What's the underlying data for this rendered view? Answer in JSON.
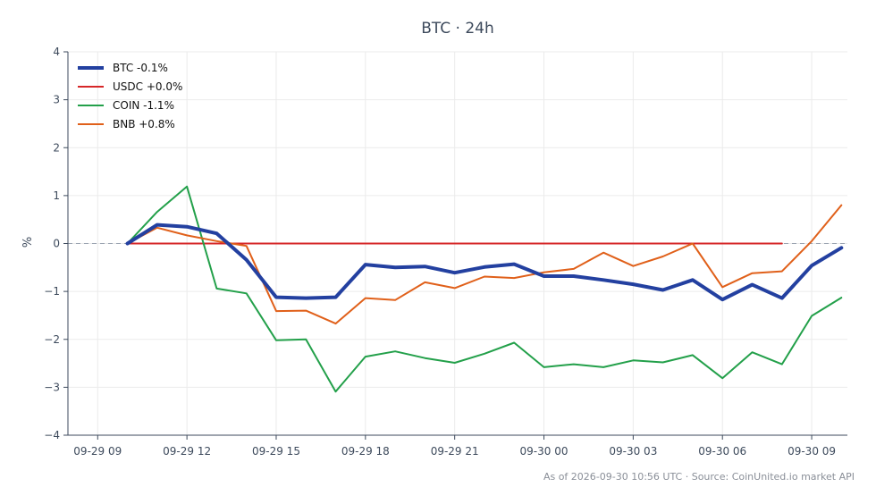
{
  "chart_data": {
    "type": "line",
    "title": "BTC · 24h",
    "xlabel": "",
    "ylabel": "%",
    "xlim": [
      -1,
      25.2
    ],
    "ylim": [
      -4,
      4
    ],
    "yticks": [
      4,
      3,
      2,
      1,
      0,
      -1,
      -2,
      -3,
      -4
    ],
    "ytick_labels": [
      "4",
      "3",
      "2",
      "1",
      "0",
      "−1",
      "−2",
      "−3",
      "−4"
    ],
    "xticks": [
      {
        "x": 0,
        "label": "09-29 09"
      },
      {
        "x": 3,
        "label": "09-29 12"
      },
      {
        "x": 6,
        "label": "09-29 15"
      },
      {
        "x": 9,
        "label": "09-29 18"
      },
      {
        "x": 12,
        "label": "09-29 21"
      },
      {
        "x": 15,
        "label": "09-30 00"
      },
      {
        "x": 18,
        "label": "09-30 03"
      },
      {
        "x": 21,
        "label": "09-30 06"
      },
      {
        "x": 24,
        "label": "09-30 09"
      }
    ],
    "grid": true,
    "zero_line": true,
    "legend_position": "top-left",
    "series": [
      {
        "name": "BTC -0.1%",
        "color": "#2340a0",
        "width": 4,
        "x": [
          1,
          2,
          3,
          4,
          5,
          6,
          7,
          8,
          9,
          10,
          11,
          12,
          13,
          14,
          15,
          16,
          17,
          18,
          19,
          20,
          21,
          22,
          23,
          24,
          25
        ],
        "y": [
          0.0,
          0.39,
          0.35,
          0.21,
          -0.34,
          -1.12,
          -1.14,
          -1.12,
          -0.44,
          -0.5,
          -0.48,
          -0.61,
          -0.49,
          -0.43,
          -0.68,
          -0.68,
          -0.76,
          -0.85,
          -0.97,
          -0.76,
          -1.17,
          -0.86,
          -1.14,
          -0.46,
          -0.09
        ]
      },
      {
        "name": "USDC +0.0%",
        "color": "#d62728",
        "width": 2,
        "x": [
          1,
          2,
          3,
          4,
          5,
          6,
          7,
          8,
          9,
          10,
          11,
          12,
          13,
          14,
          15,
          16,
          17,
          18,
          19,
          20,
          21,
          22,
          23
        ],
        "y": [
          0,
          0,
          0,
          0,
          0,
          0,
          0,
          0,
          0,
          0,
          0,
          0,
          0,
          0,
          0,
          0,
          0,
          0,
          0,
          0,
          0,
          0,
          0
        ]
      },
      {
        "name": "COIN -1.1%",
        "color": "#23a04a",
        "width": 2,
        "x": [
          1,
          2,
          3,
          4,
          5,
          6,
          7,
          8,
          9,
          10,
          11,
          12,
          13,
          14,
          15,
          16,
          17,
          18,
          19,
          20,
          21,
          22,
          23,
          24,
          25
        ],
        "y": [
          0.0,
          0.66,
          1.19,
          -0.94,
          -1.04,
          -2.02,
          -2.0,
          -3.09,
          -2.36,
          -2.25,
          -2.39,
          -2.49,
          -2.3,
          -2.07,
          -2.58,
          -2.52,
          -2.58,
          -2.44,
          -2.48,
          -2.33,
          -2.81,
          -2.27,
          -2.52,
          -1.51,
          -1.13
        ]
      },
      {
        "name": "BNB +0.8%",
        "color": "#e0601a",
        "width": 2,
        "x": [
          1,
          2,
          3,
          4,
          5,
          6,
          7,
          8,
          9,
          10,
          11,
          12,
          13,
          14,
          15,
          16,
          17,
          18,
          19,
          20,
          21,
          22,
          23,
          24,
          25
        ],
        "y": [
          0.0,
          0.33,
          0.17,
          0.05,
          -0.05,
          -1.41,
          -1.4,
          -1.67,
          -1.14,
          -1.18,
          -0.81,
          -0.93,
          -0.69,
          -0.72,
          -0.6,
          -0.53,
          -0.19,
          -0.47,
          -0.27,
          0.0,
          -0.91,
          -0.62,
          -0.58,
          0.05,
          0.8
        ]
      }
    ]
  },
  "footer_text": "As of 2026-09-30 10:56 UTC · Source: CoinUnited.io market API"
}
